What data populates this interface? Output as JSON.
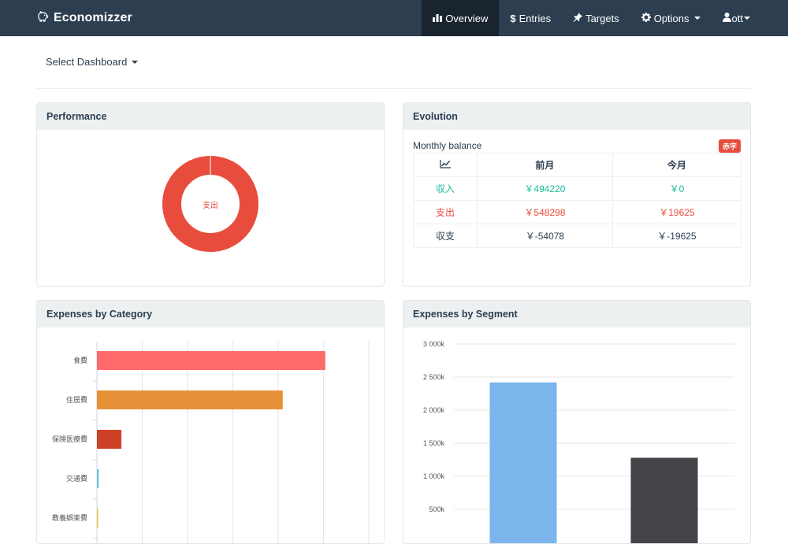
{
  "navbar": {
    "brand": "Economizzer",
    "items": [
      {
        "id": "overview",
        "label": "Overview",
        "icon": "bar-chart-icon",
        "active": true
      },
      {
        "id": "entries",
        "label": "Entries",
        "icon": "dollar-icon",
        "active": false
      },
      {
        "id": "targets",
        "label": "Targets",
        "icon": "pushpin-icon",
        "active": false
      },
      {
        "id": "options",
        "label": "Options",
        "icon": "gear-icon",
        "active": false,
        "dropdown": true
      },
      {
        "id": "user",
        "label": "ott",
        "icon": "user-icon",
        "active": false,
        "dropdown": true
      }
    ]
  },
  "dashboard_select": {
    "label": "Select Dashboard"
  },
  "performance": {
    "title": "Performance",
    "center_label": "支出",
    "color": "#e74c3c"
  },
  "evolution": {
    "title": "Evolution",
    "subtitle": "Monthly balance",
    "badge": "赤字",
    "headers": [
      "",
      "前月",
      "今月"
    ],
    "rows": [
      {
        "label": "収入",
        "prev": "￥494220",
        "curr": "￥0",
        "tone": "green"
      },
      {
        "label": "支出",
        "prev": "￥548298",
        "curr": "￥19625",
        "tone": "red"
      },
      {
        "label": "収支",
        "prev": "￥-54078",
        "curr": "￥-19625",
        "tone": "dark"
      }
    ]
  },
  "expenses_by_category": {
    "title": "Expenses by Category",
    "chart_data": {
      "type": "bar",
      "orientation": "horizontal",
      "categories": [
        "食費",
        "住居費",
        "保険医療費",
        "交通費",
        "教養娯楽費"
      ],
      "values": [
        252,
        205,
        27,
        2,
        1
      ],
      "colors": [
        "#ff6b6b",
        "#e69138",
        "#cc4125",
        "#76c3d6",
        "#f1c232"
      ],
      "xlim": [
        0,
        300
      ],
      "grid": true
    }
  },
  "expenses_by_segment": {
    "title": "Expenses by Segment",
    "chart_data": {
      "type": "bar",
      "categories": [
        "",
        ""
      ],
      "values": [
        2420,
        1280
      ],
      "colors": [
        "#7cb5ec",
        "#434348"
      ],
      "y_ticks": [
        "500k",
        "1 000k",
        "1 500k",
        "2 000k",
        "2 500k",
        "3 000k"
      ],
      "ylim": [
        0,
        3000
      ],
      "grid": true
    }
  }
}
